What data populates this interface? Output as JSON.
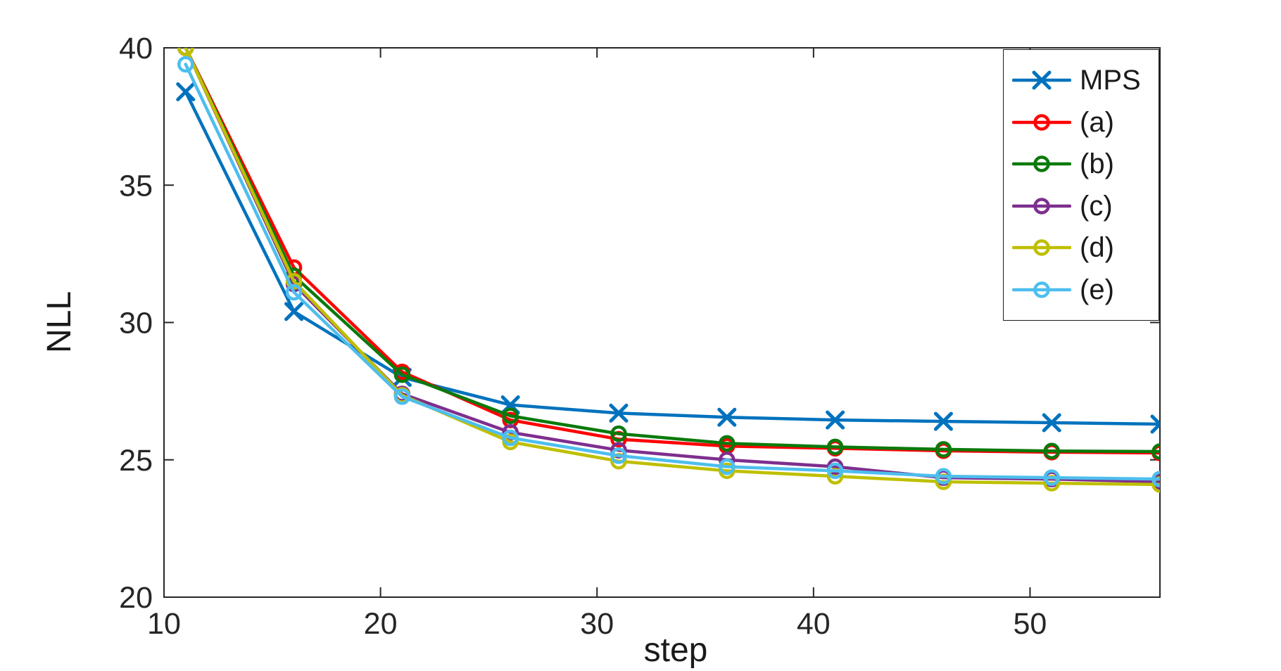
{
  "figure": {
    "background": "#ffffff"
  },
  "chart_data": {
    "type": "line",
    "title": "",
    "xlabel": "step",
    "ylabel": "NLL",
    "xlim": [
      10,
      56
    ],
    "ylim": [
      20,
      40
    ],
    "xticks": [
      10,
      20,
      30,
      40,
      50
    ],
    "yticks": [
      20,
      25,
      30,
      35,
      40
    ],
    "grid": false,
    "legend_position": "top-right",
    "axis_color": "#262626",
    "tick_label_color": "#262626",
    "x": [
      11,
      16,
      21,
      26,
      31,
      36,
      41,
      46,
      51,
      56
    ],
    "series": [
      {
        "name": "MPS",
        "color": "#0072BD",
        "marker": "x",
        "values": [
          38.4,
          30.4,
          28.0,
          27.0,
          26.7,
          26.55,
          26.45,
          26.4,
          26.35,
          26.3
        ]
      },
      {
        "name": "(a)",
        "color": "#FF0000",
        "marker": "circle",
        "values": [
          40.0,
          32.0,
          28.2,
          26.45,
          25.75,
          25.5,
          25.42,
          25.33,
          25.28,
          25.25
        ]
      },
      {
        "name": "(b)",
        "color": "#0B7A0B",
        "marker": "circle",
        "values": [
          40.0,
          31.7,
          28.1,
          26.6,
          25.95,
          25.6,
          25.47,
          25.38,
          25.32,
          25.3
        ]
      },
      {
        "name": "(c)",
        "color": "#7E2F8E",
        "marker": "circle",
        "values": [
          40.0,
          31.4,
          27.4,
          26.0,
          25.35,
          25.0,
          24.75,
          24.35,
          24.3,
          24.2
        ]
      },
      {
        "name": "(d)",
        "color": "#BFBF00",
        "marker": "circle",
        "values": [
          40.0,
          31.5,
          27.35,
          25.65,
          24.95,
          24.6,
          24.4,
          24.2,
          24.15,
          24.1
        ]
      },
      {
        "name": "(e)",
        "color": "#4DBEEE",
        "marker": "circle",
        "values": [
          39.4,
          31.1,
          27.3,
          25.8,
          25.15,
          24.75,
          24.6,
          24.4,
          24.35,
          24.3
        ]
      }
    ]
  }
}
